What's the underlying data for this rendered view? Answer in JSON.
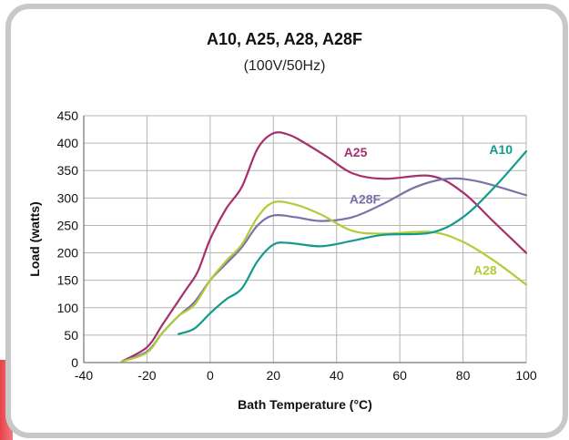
{
  "chart_data": {
    "type": "line",
    "title": "A10, A25, A28, A28F",
    "subtitle": "(100V/50Hz)",
    "xlabel": "Bath Temperature (°C)",
    "ylabel": "Load (watts)",
    "xlim": [
      -40,
      100
    ],
    "ylim": [
      0,
      450
    ],
    "x_ticks": [
      -40,
      -20,
      0,
      20,
      40,
      60,
      80,
      100
    ],
    "y_ticks": [
      0,
      50,
      100,
      150,
      200,
      250,
      300,
      350,
      400,
      450
    ],
    "grid": true,
    "legend": "direct labels on lines",
    "series": [
      {
        "name": "A25",
        "color": "#a5306e",
        "label_anchor": [
          46,
          375
        ],
        "points": [
          [
            -28,
            2
          ],
          [
            -20,
            28
          ],
          [
            -15,
            70
          ],
          [
            -8,
            130
          ],
          [
            -4,
            165
          ],
          [
            0,
            225
          ],
          [
            5,
            280
          ],
          [
            10,
            320
          ],
          [
            15,
            390
          ],
          [
            20,
            418
          ],
          [
            25,
            415
          ],
          [
            30,
            400
          ],
          [
            37,
            375
          ],
          [
            45,
            345
          ],
          [
            55,
            335
          ],
          [
            70,
            340
          ],
          [
            80,
            310
          ],
          [
            90,
            255
          ],
          [
            100,
            200
          ]
        ]
      },
      {
        "name": "A28F",
        "color": "#7872aa",
        "label_anchor": [
          49,
          290
        ],
        "points": [
          [
            -28,
            2
          ],
          [
            -20,
            20
          ],
          [
            -15,
            55
          ],
          [
            -10,
            85
          ],
          [
            -5,
            110
          ],
          [
            0,
            150
          ],
          [
            5,
            180
          ],
          [
            10,
            210
          ],
          [
            15,
            250
          ],
          [
            20,
            268
          ],
          [
            27,
            265
          ],
          [
            35,
            258
          ],
          [
            45,
            265
          ],
          [
            55,
            290
          ],
          [
            65,
            320
          ],
          [
            75,
            335
          ],
          [
            85,
            330
          ],
          [
            100,
            305
          ]
        ]
      },
      {
        "name": "A28",
        "color": "#b2cc38",
        "label_anchor": [
          87,
          160
        ],
        "points": [
          [
            -28,
            2
          ],
          [
            -20,
            18
          ],
          [
            -15,
            55
          ],
          [
            -10,
            85
          ],
          [
            -5,
            105
          ],
          [
            0,
            150
          ],
          [
            5,
            185
          ],
          [
            10,
            215
          ],
          [
            15,
            265
          ],
          [
            20,
            292
          ],
          [
            27,
            288
          ],
          [
            35,
            270
          ],
          [
            45,
            240
          ],
          [
            55,
            235
          ],
          [
            70,
            238
          ],
          [
            80,
            220
          ],
          [
            90,
            185
          ],
          [
            100,
            142
          ]
        ]
      },
      {
        "name": "A10",
        "color": "#129a8a",
        "label_anchor": [
          92,
          380
        ],
        "points": [
          [
            -10,
            52
          ],
          [
            -5,
            62
          ],
          [
            0,
            90
          ],
          [
            5,
            115
          ],
          [
            10,
            135
          ],
          [
            15,
            185
          ],
          [
            20,
            215
          ],
          [
            25,
            218
          ],
          [
            35,
            212
          ],
          [
            45,
            222
          ],
          [
            55,
            233
          ],
          [
            70,
            237
          ],
          [
            80,
            265
          ],
          [
            90,
            320
          ],
          [
            100,
            385
          ]
        ]
      }
    ]
  }
}
